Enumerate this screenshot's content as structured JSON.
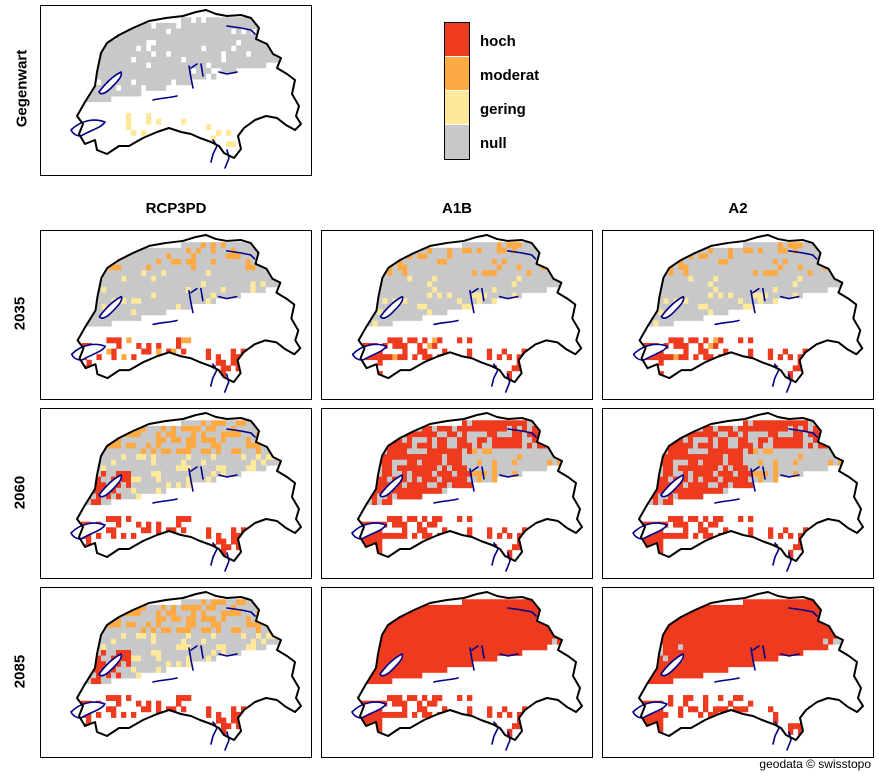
{
  "legend": {
    "items": [
      {
        "label": "hoch",
        "color": "#ee3b1f"
      },
      {
        "label": "moderat",
        "color": "#fdaa45"
      },
      {
        "label": "gering",
        "color": "#fee99a"
      },
      {
        "label": "null",
        "color": "#c8c8c8"
      }
    ]
  },
  "columns": [
    "RCP3PD",
    "A1B",
    "A2"
  ],
  "rows": [
    "2035",
    "2060",
    "2085"
  ],
  "current_label": "Gegenwart",
  "credit": "geodata © swisstopo",
  "colors": {
    "border": "#000000",
    "lakes": "#00008b",
    "empty": "#ffffff"
  }
}
